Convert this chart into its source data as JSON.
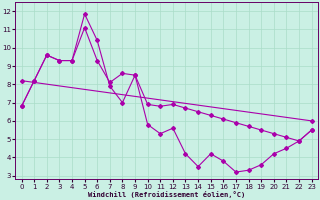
{
  "xlabel": "Windchill (Refroidissement éolien,°C)",
  "xlim": [
    -0.5,
    23.5
  ],
  "ylim": [
    2.8,
    12.5
  ],
  "yticks": [
    3,
    4,
    5,
    6,
    7,
    8,
    9,
    10,
    11,
    12
  ],
  "xticks": [
    0,
    1,
    2,
    3,
    4,
    5,
    6,
    7,
    8,
    9,
    10,
    11,
    12,
    13,
    14,
    15,
    16,
    17,
    18,
    19,
    20,
    21,
    22,
    23
  ],
  "background_color": "#caf0e4",
  "grid_color": "#aaddc8",
  "line_color": "#aa00aa",
  "line1_x": [
    0,
    1,
    2,
    3,
    4,
    5,
    6,
    7,
    8,
    9,
    10,
    11,
    12,
    13,
    14,
    15,
    16,
    17,
    18,
    19,
    20,
    21,
    22,
    23
  ],
  "line1_y": [
    6.8,
    8.2,
    9.6,
    9.3,
    9.3,
    11.85,
    10.4,
    7.9,
    7.0,
    8.5,
    5.8,
    5.3,
    5.6,
    4.2,
    3.5,
    4.2,
    3.8,
    3.2,
    3.3,
    3.6,
    4.2,
    4.5,
    4.9,
    5.5
  ],
  "line2_x": [
    0,
    1,
    2,
    3,
    4,
    5,
    6,
    7,
    8,
    9,
    10,
    11,
    12,
    13,
    14,
    15,
    16,
    17,
    18,
    19,
    20,
    21,
    22,
    23
  ],
  "line2_y": [
    6.8,
    8.2,
    9.6,
    9.3,
    9.3,
    11.1,
    9.3,
    8.1,
    8.6,
    8.5,
    6.9,
    6.8,
    6.9,
    6.7,
    6.5,
    6.3,
    6.1,
    5.9,
    5.7,
    5.5,
    5.3,
    5.1,
    4.9,
    5.5
  ],
  "line3_x": [
    0,
    23
  ],
  "line3_y": [
    8.2,
    6.0
  ],
  "figsize": [
    3.2,
    2.0
  ],
  "dpi": 100,
  "tick_labelsize": 5,
  "xlabel_fontsize": 5,
  "lw": 0.8,
  "ms": 2.0
}
